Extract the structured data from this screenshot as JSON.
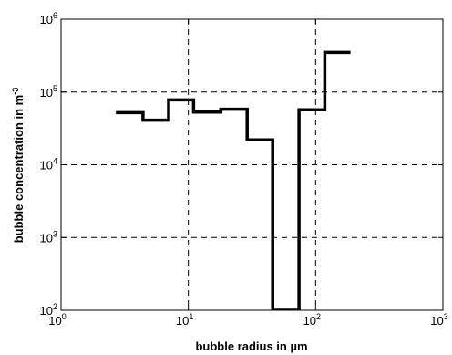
{
  "chart_data": {
    "type": "line",
    "step": true,
    "title": "",
    "xlabel": "bubble radius in µm",
    "ylabel_main": "bubble concentration in m",
    "ylabel_sup": "-3",
    "xscale": "log",
    "yscale": "log",
    "xlim": [
      1,
      1000
    ],
    "ylim": [
      100,
      1000000
    ],
    "grid": true,
    "grid_style": "dashed",
    "line_color": "#000000",
    "x_ticks": [
      {
        "value": 1,
        "base": "10",
        "exp": "0"
      },
      {
        "value": 10,
        "base": "10",
        "exp": "1"
      },
      {
        "value": 100,
        "base": "10",
        "exp": "2"
      },
      {
        "value": 1000,
        "base": "10",
        "exp": "3"
      }
    ],
    "y_ticks": [
      {
        "value": 100,
        "base": "10",
        "exp": "2"
      },
      {
        "value": 1000,
        "base": "10",
        "exp": "3"
      },
      {
        "value": 10000,
        "base": "10",
        "exp": "4"
      },
      {
        "value": 100000,
        "base": "10",
        "exp": "5"
      },
      {
        "value": 1000000,
        "base": "10",
        "exp": "6"
      }
    ],
    "bins": [
      {
        "x0": 2.7,
        "x1": 4.4,
        "y": 52000
      },
      {
        "x0": 4.4,
        "x1": 7.0,
        "y": 41000
      },
      {
        "x0": 7.0,
        "x1": 11.0,
        "y": 78000
      },
      {
        "x0": 11.0,
        "x1": 18.0,
        "y": 53000
      },
      {
        "x0": 18.0,
        "x1": 29.0,
        "y": 58000
      },
      {
        "x0": 29.0,
        "x1": 46.0,
        "y": 22000
      },
      {
        "x0": 46.0,
        "x1": 74.0,
        "y": 100
      },
      {
        "x0": 74.0,
        "x1": 118.0,
        "y": 57000
      },
      {
        "x0": 118.0,
        "x1": 188.0,
        "y": 350000
      }
    ]
  }
}
